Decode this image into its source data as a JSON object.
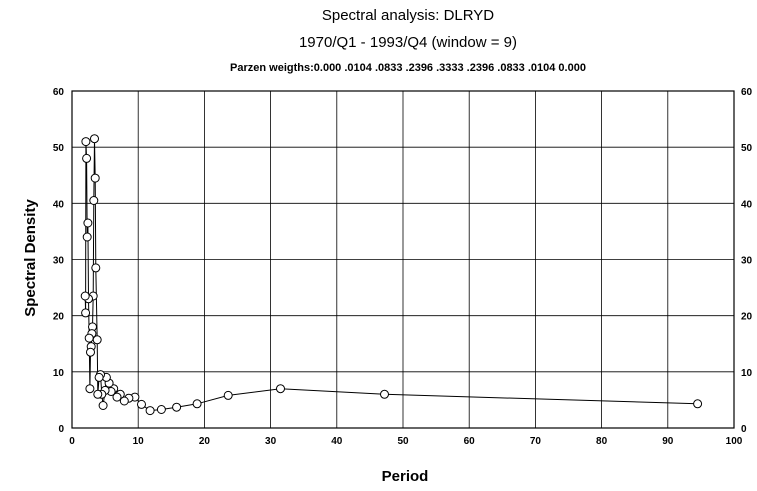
{
  "chart_data": {
    "type": "line",
    "title": "Spectral analysis: DLRYD",
    "subtitle": "1970/Q1 - 1993/Q4 (window = 9)",
    "note": "Parzen weigths:0.000 .0104 .0833 .2396 .3333 .2396 .0833 .0104 0.000",
    "xlabel": "Period",
    "ylabel": "Spectral Density",
    "xlim": [
      0,
      100
    ],
    "ylim": [
      0,
      60
    ],
    "x_ticks": [
      "0",
      "10",
      "20",
      "30",
      "40",
      "50",
      "60",
      "70",
      "80",
      "90",
      "100"
    ],
    "y_ticks": [
      "0",
      "10",
      "20",
      "30",
      "40",
      "50",
      "60"
    ],
    "y_ticks_right": [
      "0",
      "10",
      "20",
      "30",
      "40",
      "50",
      "60"
    ],
    "grid": true,
    "legend": "none",
    "markers": "open-circle",
    "series": [
      {
        "x": [
          94.5,
          47.2,
          31.5,
          23.6,
          18.9,
          15.8,
          13.5,
          11.8,
          10.5,
          9.5,
          8.6,
          7.9,
          7.3,
          6.8,
          6.3,
          5.9,
          5.6,
          5.2,
          5.0,
          4.7,
          4.5,
          4.3,
          4.1,
          3.9,
          3.8,
          3.6,
          3.5,
          3.4,
          3.3,
          3.2,
          3.1,
          3.0,
          2.9,
          2.8,
          2.7,
          2.6,
          2.5,
          2.4,
          2.3,
          2.2,
          2.1,
          2.05,
          2.0
        ],
        "y": [
          4.3,
          6.0,
          7.0,
          5.8,
          4.3,
          3.7,
          3.3,
          3.1,
          4.2,
          5.5,
          5.3,
          4.8,
          6.0,
          5.5,
          7.0,
          6.5,
          8.0,
          9.0,
          6.7,
          4.0,
          6.0,
          9.5,
          9.0,
          6.0,
          15.7,
          28.5,
          44.5,
          51.5,
          40.5,
          23.5,
          18.0,
          16.8,
          14.5,
          13.5,
          7.0,
          16.0,
          23.0,
          36.5,
          34.0,
          48.0,
          51.0,
          20.5,
          23.5
        ]
      }
    ]
  }
}
